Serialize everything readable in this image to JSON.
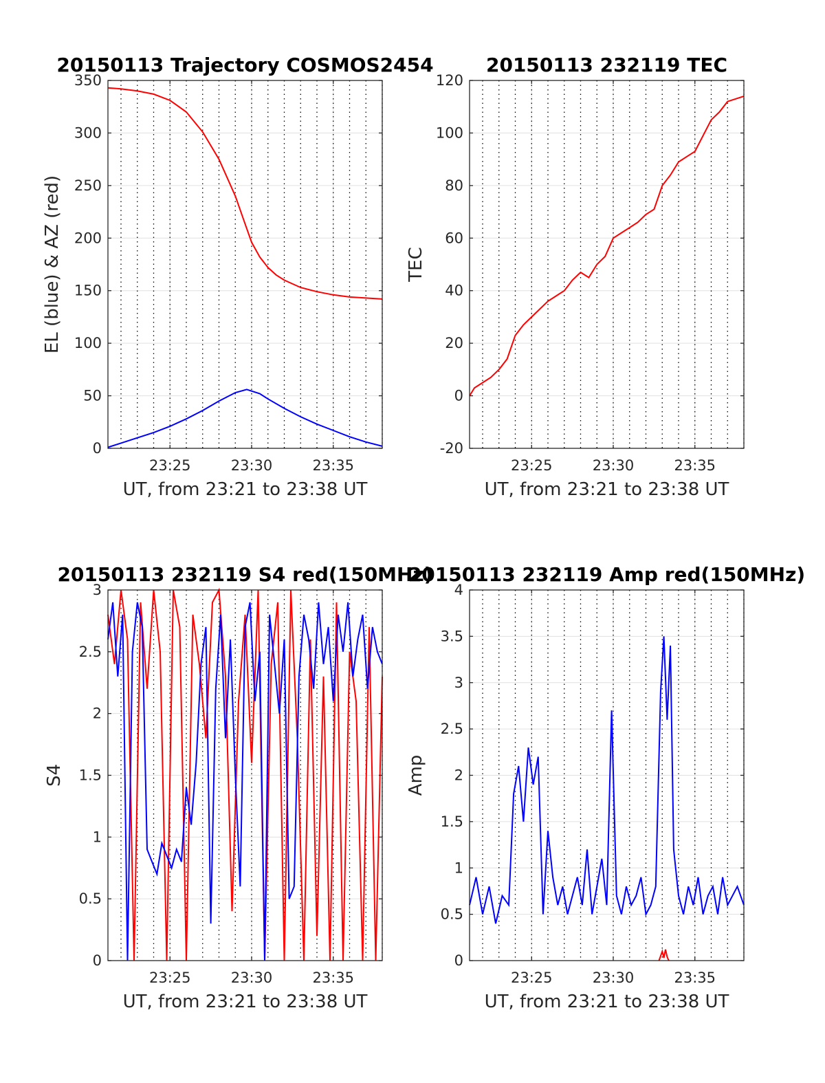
{
  "chart_data": [
    {
      "type": "line",
      "title": "20150113 Trajectory COSMOS2454",
      "xlabel": "UT, from 23:21 to 23:38 UT",
      "ylabel": "EL (blue) & AZ (red)",
      "xlim_minutes": [
        21.2,
        38.0
      ],
      "ylim": [
        0,
        350
      ],
      "yticks": [
        0,
        50,
        100,
        150,
        200,
        250,
        300,
        350
      ],
      "yticklabels": [
        "0",
        "50",
        "100",
        "150",
        "200",
        "250",
        "300",
        "350"
      ],
      "xticks": [
        25,
        30,
        35
      ],
      "xticklabels": [
        "23:25",
        "23:30",
        "23:35"
      ],
      "dotted_minute_lines": true,
      "grid": true,
      "series": [
        {
          "color": "#ff0000",
          "x": [
            21.2,
            22,
            23,
            24,
            25,
            26,
            27,
            28,
            29,
            29.5,
            30,
            30.5,
            31,
            31.5,
            32,
            33,
            34,
            35,
            36,
            37,
            38
          ],
          "y": [
            343,
            342,
            340,
            337,
            331,
            320,
            301,
            275,
            240,
            218,
            196,
            182,
            172,
            165,
            160,
            153,
            149,
            146,
            144,
            143,
            142
          ]
        },
        {
          "color": "#0000ff",
          "x": [
            21.2,
            22,
            23,
            24,
            25,
            26,
            27,
            28,
            29,
            29.7,
            30.5,
            31,
            32,
            33,
            34,
            35,
            36,
            37,
            38
          ],
          "y": [
            1,
            5,
            10,
            15,
            21,
            28,
            36,
            45,
            53,
            56,
            52,
            47,
            38,
            30,
            23,
            17,
            11,
            6,
            2
          ]
        }
      ]
    },
    {
      "type": "line",
      "title": "20150113 232119 TEC",
      "xlabel": "UT, from 23:21 to 23:38 UT",
      "ylabel": "TEC",
      "xlim_minutes": [
        21.2,
        38.0
      ],
      "ylim": [
        -20,
        120
      ],
      "yticks": [
        -20,
        0,
        20,
        40,
        60,
        80,
        100,
        120
      ],
      "yticklabels": [
        "-20",
        "0",
        "20",
        "40",
        "60",
        "80",
        "100",
        "120"
      ],
      "xticks": [
        25,
        30,
        35
      ],
      "xticklabels": [
        "23:25",
        "23:30",
        "23:35"
      ],
      "dotted_minute_lines": true,
      "grid": true,
      "series": [
        {
          "color": "#ff0000",
          "x": [
            21.2,
            21.5,
            22,
            22.5,
            23,
            23.5,
            24,
            24.5,
            25,
            25.5,
            26,
            26.5,
            27,
            27.5,
            28,
            28.5,
            29,
            29.5,
            30,
            30.5,
            31,
            31.5,
            32,
            32.5,
            33,
            33.5,
            34,
            34.5,
            35,
            35.5,
            36,
            36.5,
            37,
            37.5,
            38
          ],
          "y": [
            0,
            3,
            5,
            7,
            10,
            14,
            23,
            27,
            30,
            33,
            36,
            38,
            40,
            44,
            47,
            45,
            50,
            53,
            60,
            62,
            64,
            66,
            69,
            71,
            80,
            84,
            89,
            91,
            93,
            99,
            105,
            108,
            112,
            113,
            114
          ]
        }
      ]
    },
    {
      "type": "line",
      "title": "20150113 232119 S4 red(150MHz)",
      "xlabel": "UT, from 23:21 to 23:38 UT",
      "ylabel": "S4",
      "xlim_minutes": [
        21.2,
        38.0
      ],
      "ylim": [
        0,
        3
      ],
      "yticks": [
        0,
        0.5,
        1,
        1.5,
        2,
        2.5,
        3
      ],
      "yticklabels": [
        "0",
        "0.5",
        "1",
        "1.5",
        "2",
        "2.5",
        "3"
      ],
      "xticks": [
        25,
        30,
        35
      ],
      "xticklabels": [
        "23:25",
        "23:30",
        "23:35"
      ],
      "dotted_minute_lines": true,
      "grid": true,
      "series": [
        {
          "color": "#ff0000",
          "x": [
            21.2,
            21.6,
            22,
            22.4,
            22.8,
            23.2,
            23.6,
            24,
            24.4,
            24.8,
            25.2,
            25.6,
            26,
            26.4,
            26.8,
            27.2,
            27.6,
            28,
            28.4,
            28.8,
            29.2,
            29.6,
            30,
            30.4,
            30.8,
            31.2,
            31.6,
            32,
            32.4,
            32.8,
            33.2,
            33.6,
            34,
            34.4,
            34.8,
            35.2,
            35.6,
            36,
            36.4,
            36.8,
            37.2,
            37.6,
            38
          ],
          "y": [
            2.8,
            2.4,
            3,
            2.6,
            0,
            2.9,
            2.2,
            3,
            2.5,
            0,
            3,
            2.7,
            0,
            2.8,
            2.4,
            1.8,
            2.9,
            3,
            2.3,
            0.4,
            2.1,
            2.8,
            1.6,
            3,
            0,
            2.4,
            2.9,
            0,
            3,
            1.8,
            0,
            2.6,
            0.2,
            2.3,
            0,
            2.9,
            0,
            2.5,
            2.1,
            0,
            2.7,
            0,
            2.3
          ]
        },
        {
          "color": "#0000ff",
          "x": [
            21.2,
            21.5,
            21.8,
            22.1,
            22.4,
            22.7,
            23,
            23.3,
            23.6,
            23.9,
            24.2,
            24.5,
            24.8,
            25.1,
            25.4,
            25.7,
            26,
            26.3,
            26.6,
            26.9,
            27.2,
            27.5,
            27.8,
            28.1,
            28.4,
            28.7,
            29,
            29.3,
            29.6,
            29.9,
            30.2,
            30.5,
            30.8,
            31.1,
            31.4,
            31.7,
            32,
            32.3,
            32.6,
            32.9,
            33.2,
            33.5,
            33.8,
            34.1,
            34.4,
            34.7,
            35,
            35.3,
            35.6,
            35.9,
            36.2,
            36.5,
            36.8,
            37.1,
            37.4,
            37.7,
            38
          ],
          "y": [
            2.6,
            2.9,
            2.3,
            2.8,
            0,
            2.5,
            2.9,
            2.7,
            0.9,
            0.8,
            0.7,
            0.95,
            0.85,
            0.75,
            0.9,
            0.8,
            1.4,
            1.1,
            1.6,
            2.4,
            2.7,
            0.3,
            2.2,
            2.8,
            1.8,
            2.6,
            1.5,
            0.6,
            2.7,
            2.9,
            2.1,
            2.5,
            0,
            2.8,
            2.4,
            2,
            2.6,
            0.5,
            0.6,
            2.3,
            2.8,
            2.6,
            2.2,
            2.9,
            2.4,
            2.7,
            2.1,
            2.8,
            2.5,
            2.9,
            2.3,
            2.6,
            2.8,
            2.2,
            2.7,
            2.5,
            2.4
          ]
        }
      ]
    },
    {
      "type": "line",
      "title": "20150113 232119 Amp red(150MHz)",
      "xlabel": "UT, from 23:21 to 23:38 UT",
      "ylabel": "Amp",
      "xlim_minutes": [
        21.2,
        38.0
      ],
      "ylim": [
        0,
        4
      ],
      "yticks": [
        0,
        0.5,
        1,
        1.5,
        2,
        2.5,
        3,
        3.5,
        4
      ],
      "yticklabels": [
        "0",
        "0.5",
        "1",
        "1.5",
        "2",
        "2.5",
        "3",
        "3.5",
        "4"
      ],
      "xticks": [
        25,
        30,
        35
      ],
      "xticklabels": [
        "23:25",
        "23:30",
        "23:35"
      ],
      "dotted_minute_lines": true,
      "grid": true,
      "series": [
        {
          "color": "#0000ff",
          "x": [
            21.2,
            21.6,
            22,
            22.4,
            22.8,
            23.2,
            23.6,
            23.9,
            24.2,
            24.5,
            24.8,
            25.1,
            25.4,
            25.7,
            26,
            26.3,
            26.6,
            26.9,
            27.2,
            27.5,
            27.8,
            28.1,
            28.4,
            28.7,
            29,
            29.3,
            29.6,
            29.9,
            30.2,
            30.5,
            30.8,
            31.1,
            31.4,
            31.7,
            32,
            32.3,
            32.6,
            32.9,
            33.1,
            33.3,
            33.5,
            33.7,
            34,
            34.3,
            34.6,
            34.9,
            35.2,
            35.5,
            35.8,
            36.1,
            36.4,
            36.7,
            37,
            37.3,
            37.6,
            38
          ],
          "y": [
            0.6,
            0.9,
            0.5,
            0.8,
            0.4,
            0.7,
            0.6,
            1.8,
            2.1,
            1.5,
            2.3,
            1.9,
            2.2,
            0.5,
            1.4,
            0.9,
            0.6,
            0.8,
            0.5,
            0.7,
            0.9,
            0.6,
            1.2,
            0.5,
            0.8,
            1.1,
            0.6,
            2.7,
            0.7,
            0.5,
            0.8,
            0.6,
            0.7,
            0.9,
            0.5,
            0.6,
            0.8,
            2.9,
            3.5,
            2.6,
            3.4,
            1.2,
            0.7,
            0.5,
            0.8,
            0.6,
            0.9,
            0.5,
            0.7,
            0.8,
            0.5,
            0.9,
            0.6,
            0.7,
            0.8,
            0.6
          ]
        },
        {
          "color": "#ff0000",
          "x": [
            32.8,
            32.9,
            33.0,
            33.1,
            33.2,
            33.3,
            33.4
          ],
          "y": [
            0,
            0.05,
            0.1,
            0.03,
            0.12,
            0.04,
            0
          ]
        }
      ]
    }
  ]
}
